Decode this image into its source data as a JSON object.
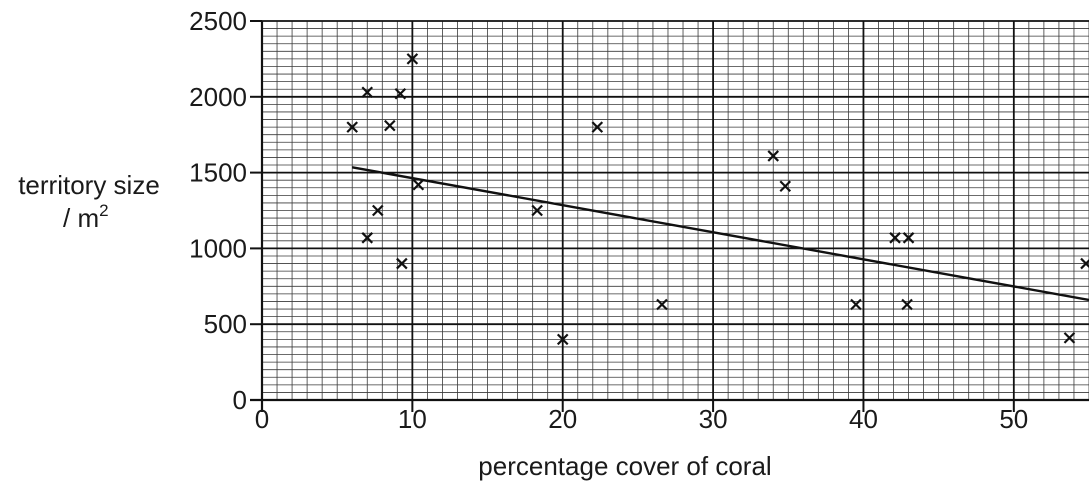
{
  "chart_data": {
    "type": "scatter",
    "title": "",
    "xlabel": "percentage cover of coral",
    "ylabel_line1": "territory size",
    "ylabel_unit": "/ m",
    "ylabel_exponent": "2",
    "xlim": [
      0,
      55
    ],
    "ylim": [
      0,
      2500
    ],
    "x_ticks": [
      0,
      10,
      20,
      30,
      40,
      50
    ],
    "y_ticks": [
      0,
      500,
      1000,
      1500,
      2000,
      2500
    ],
    "x_tick_labels": [
      "0",
      "10",
      "20",
      "30",
      "40",
      "50"
    ],
    "y_tick_labels": [
      "0",
      "500",
      "1000",
      "1500",
      "2000",
      "2500"
    ],
    "grid": {
      "minor_x": 1,
      "minor_y": 50,
      "major_x": 10,
      "major_y": 500
    },
    "marker": "x",
    "points": [
      {
        "x": 6.0,
        "y": 1800
      },
      {
        "x": 7.0,
        "y": 2030
      },
      {
        "x": 7.0,
        "y": 1070
      },
      {
        "x": 7.7,
        "y": 1250
      },
      {
        "x": 8.5,
        "y": 1810
      },
      {
        "x": 9.2,
        "y": 2020
      },
      {
        "x": 9.3,
        "y": 900
      },
      {
        "x": 10.0,
        "y": 2250
      },
      {
        "x": 10.4,
        "y": 1420
      },
      {
        "x": 18.3,
        "y": 1250
      },
      {
        "x": 20.0,
        "y": 400
      },
      {
        "x": 22.3,
        "y": 1800
      },
      {
        "x": 26.6,
        "y": 630
      },
      {
        "x": 34.0,
        "y": 1610
      },
      {
        "x": 34.8,
        "y": 1410
      },
      {
        "x": 39.5,
        "y": 630
      },
      {
        "x": 42.1,
        "y": 1070
      },
      {
        "x": 43.0,
        "y": 1070
      },
      {
        "x": 42.9,
        "y": 630
      },
      {
        "x": 53.7,
        "y": 410
      },
      {
        "x": 54.8,
        "y": 900
      }
    ],
    "trend_line": {
      "x": [
        6.0,
        55.0
      ],
      "y": [
        1535,
        660
      ]
    }
  }
}
